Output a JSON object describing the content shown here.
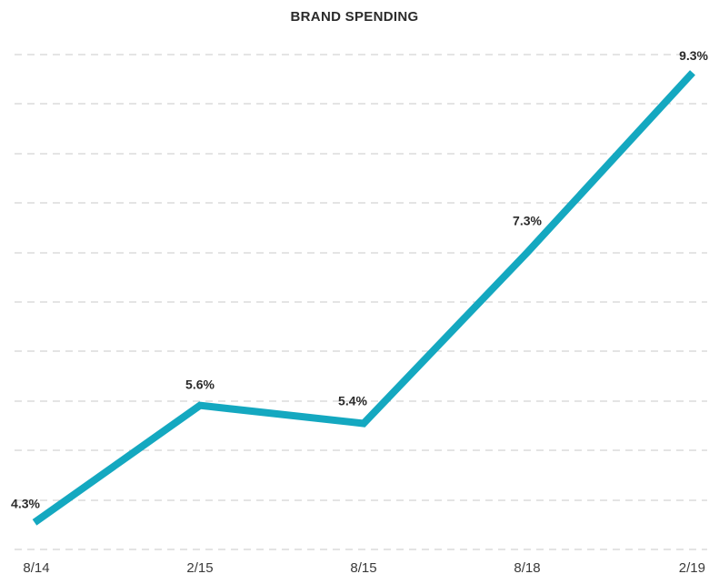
{
  "chart_data": {
    "type": "line",
    "title": "BRAND SPENDING",
    "xlabel": "",
    "ylabel": "",
    "categories": [
      "8/14",
      "2/15",
      "8/15",
      "8/18",
      "2/19"
    ],
    "series": [
      {
        "values": [
          4.3,
          5.6,
          5.4,
          7.3,
          9.3
        ],
        "labels": [
          "4.3%",
          "5.6%",
          "5.4%",
          "7.3%",
          "9.3%"
        ],
        "color": "#14a8c0"
      }
    ],
    "ylim": [
      4.0,
      9.5
    ],
    "grid": true,
    "legend": "none"
  }
}
